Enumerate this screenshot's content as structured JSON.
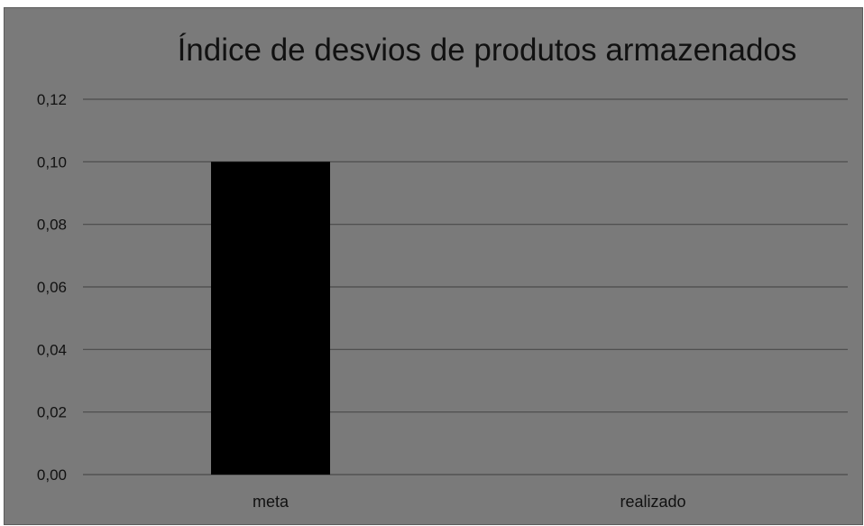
{
  "chart_data": {
    "type": "bar",
    "title": "Índice de desvios de produtos armazenados",
    "categories": [
      "meta",
      "realizado"
    ],
    "values": [
      0.1,
      0
    ],
    "ylim": [
      0,
      0.12
    ],
    "yticks": [
      "0,00",
      "0,02",
      "0,04",
      "0,06",
      "0,08",
      "0,10",
      "0,12"
    ],
    "grid": true,
    "colors": {
      "background": "#7a7a7a",
      "bar": "#000000",
      "gridline": "#4a4a4a"
    }
  }
}
